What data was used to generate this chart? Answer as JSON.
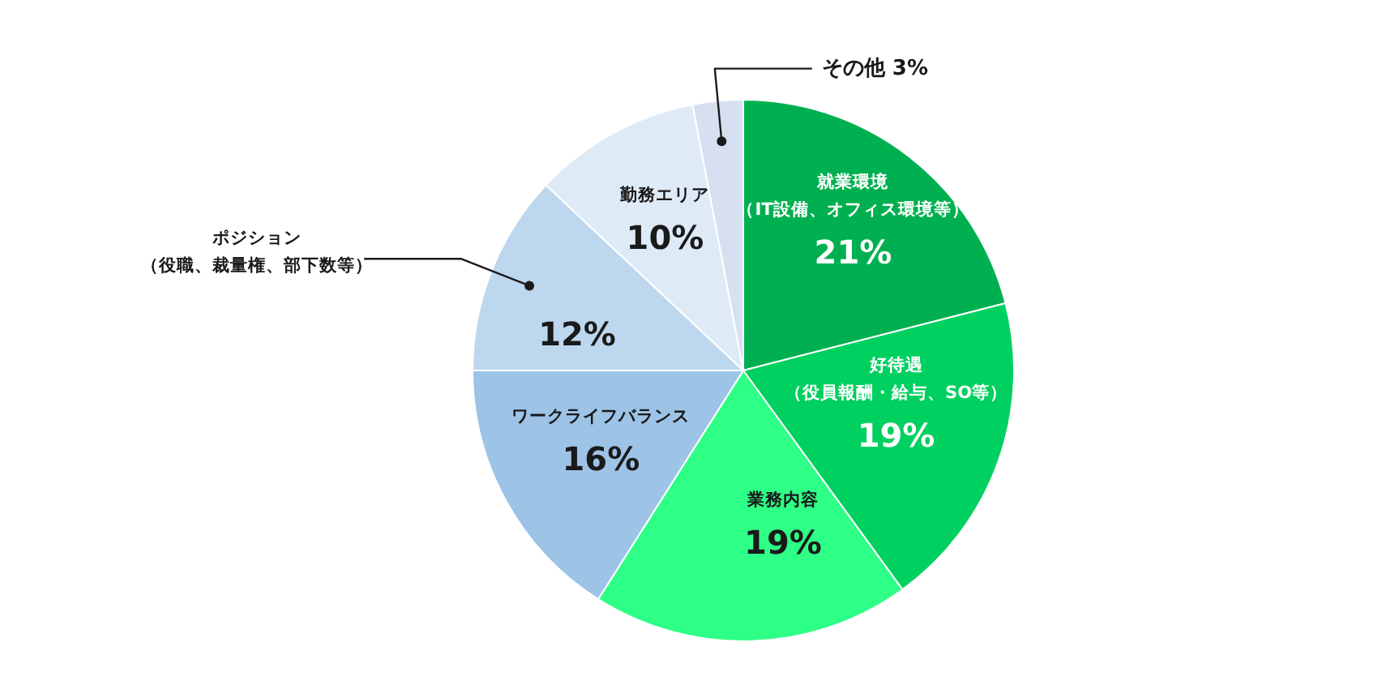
{
  "chart_data": {
    "type": "pie",
    "categories": [
      "就業環境（IT設備、オフィス環境等）",
      "好待遇（役員報酬・給与、SO等）",
      "業務内容",
      "ワークライフバランス",
      "ポジション（役職、裁量権、部下数等）",
      "勤務エリア",
      "その他"
    ],
    "values": [
      21,
      19,
      19,
      16,
      12,
      10,
      3
    ],
    "colors": [
      "#00b050",
      "#00d060",
      "#2eff86",
      "#9dc3e6",
      "#bdd7ee",
      "#deebf7",
      "#d6e0f0"
    ],
    "value_labels": [
      "21%",
      "19%",
      "19%",
      "16%",
      "12%",
      "10%",
      "3%"
    ]
  }
}
